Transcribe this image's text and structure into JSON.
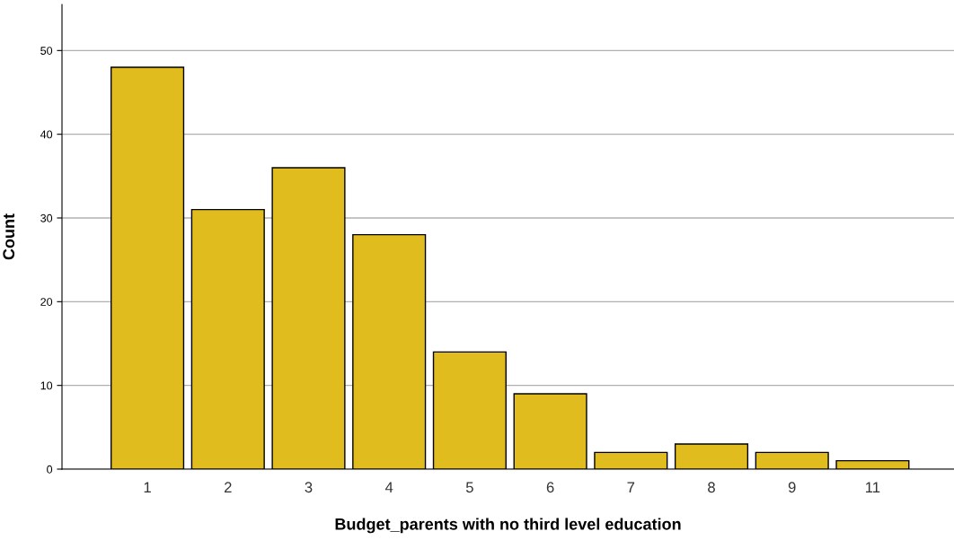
{
  "chart_data": {
    "type": "bar",
    "xlabel": "Budget_parents with no third level education",
    "ylabel": "Count",
    "categories": [
      "1",
      "2",
      "3",
      "4",
      "5",
      "6",
      "7",
      "8",
      "9",
      "11"
    ],
    "values": [
      48,
      31,
      36,
      28,
      14,
      9,
      2,
      3,
      2,
      1
    ],
    "color": "#e0bc1e",
    "ylim": [
      0,
      55.5
    ],
    "yticks": [
      0,
      10,
      20,
      30,
      40,
      50
    ],
    "grid": "y"
  }
}
